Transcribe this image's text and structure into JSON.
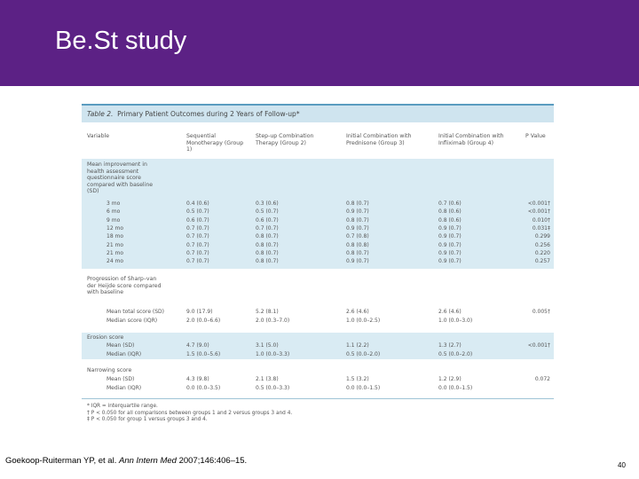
{
  "slide": {
    "title": "Be.St study",
    "page_number": "40"
  },
  "citation": {
    "authors": "Goekoop-Ruiterman YP, et al.",
    "journal": "Ann Intern Med",
    "details": "2007;146:406–15."
  },
  "table": {
    "number": "Table 2.",
    "caption": "Primary Patient Outcomes during 2 Years of Follow-up*",
    "headers": [
      "Variable",
      "Sequential Monotherapy (Group 1)",
      "Step-up Combination Therapy (Group 2)",
      "Initial Combination with Prednisone (Group 3)",
      "Initial Combination with Infliximab (Group 4)",
      "P Value"
    ],
    "sections": {
      "haq_label": "Mean improvement in health assessment questionnaire score compared with baseline (SD)",
      "haq_rows": [
        [
          "3 mo",
          "0.4 (0.6)",
          "0.3 (0.6)",
          "0.8 (0.7)",
          "0.7 (0.6)",
          "<0.001†"
        ],
        [
          "6 mo",
          "0.5 (0.7)",
          "0.5 (0.7)",
          "0.9 (0.7)",
          "0.8 (0.6)",
          "<0.001†"
        ],
        [
          "9 mo",
          "0.6 (0.7)",
          "0.6 (0.7)",
          "0.8 (0.7)",
          "0.8 (0.6)",
          "0.010†"
        ],
        [
          "12 mo",
          "0.7 (0.7)",
          "0.7 (0.7)",
          "0.9 (0.7)",
          "0.9 (0.7)",
          "0.031‡"
        ],
        [
          "18 mo",
          "0.7 (0.7)",
          "0.8 (0.7)",
          "0.7 (0.8)",
          "0.9 (0.7)",
          "0.299"
        ],
        [
          "21 mo",
          "0.7 (0.7)",
          "0.8 (0.7)",
          "0.8 (0.8)",
          "0.9 (0.7)",
          "0.256"
        ],
        [
          "21 mo",
          "0.7 (0.7)",
          "0.8 (0.7)",
          "0.8 (0.7)",
          "0.9 (0.7)",
          "0.220"
        ],
        [
          "24 mo",
          "0.7 (0.7)",
          "0.8 (0.7)",
          "0.9 (0.7)",
          "0.9 (0.7)",
          "0.257"
        ]
      ],
      "sharp_label": "Progression of Sharp–van der Heijde score compared with baseline",
      "sharp_rows": [
        [
          "Mean total score (SD)",
          "9.0 (17.9)",
          "5.2 (8.1)",
          "2.6 (4.6)",
          "2.6 (4.6)",
          "0.005†"
        ],
        [
          "Median score (IQR)",
          "2.0 (0.0–6.6)",
          "2.0 (0.3–7.0)",
          "1.0 (0.0–2.5)",
          "1.0 (0.0–3.0)",
          ""
        ]
      ],
      "erosion_label": "Erosion score",
      "erosion_rows": [
        [
          "Mean (SD)",
          "4.7 (9.0)",
          "3.1 (5.0)",
          "1.1 (2.2)",
          "1.3 (2.7)",
          "<0.001†"
        ],
        [
          "Median (IQR)",
          "1.5 (0.0–5.6)",
          "1.0 (0.0–3.3)",
          "0.5 (0.0–2.0)",
          "0.5 (0.0–2.0)",
          ""
        ]
      ],
      "narrowing_label": "Narrowing score",
      "narrowing_rows": [
        [
          "Mean (SD)",
          "4.3 (9.8)",
          "2.1 (3.8)",
          "1.5 (3.2)",
          "1.2 (2.9)",
          "0.072"
        ],
        [
          "Median (IQR)",
          "0.0 (0.0–3.5)",
          "0.5 (0.0–3.3)",
          "0.0 (0.0–1.5)",
          "0.0 (0.0–1.5)",
          ""
        ]
      ]
    },
    "footnotes": [
      "* IQR = interquartile range.",
      "† P < 0.050 for all comparisons between groups 1 and 2 versus groups 3 and 4.",
      "‡ P < 0.050 for group 1 versus groups 3 and 4."
    ]
  }
}
